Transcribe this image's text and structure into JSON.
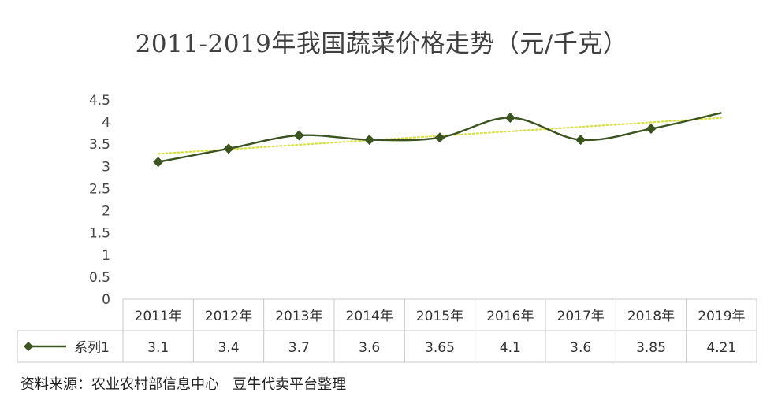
{
  "chart_data": {
    "type": "line",
    "title": "2011-2019年我国蔬菜价格走势（元/千克）",
    "categories": [
      "2011年",
      "2012年",
      "2013年",
      "2014年",
      "2015年",
      "2016年",
      "2017年",
      "2018年",
      "2019年"
    ],
    "series": [
      {
        "name": "系列1",
        "values": [
          3.1,
          3.4,
          3.7,
          3.6,
          3.65,
          4.1,
          3.6,
          3.85,
          4.21
        ]
      }
    ],
    "y_ticks": [
      "0",
      "0.5",
      "1",
      "1.5",
      "2",
      "2.5",
      "3",
      "3.5",
      "4",
      "4.5"
    ],
    "ylim": [
      0,
      4.5
    ],
    "data_table": true,
    "trendline": "linear",
    "smoothed": true,
    "grid": false,
    "colors": {
      "series": "#3b5320",
      "trendline": "#d9e04a",
      "table_border": "#c8c8c8"
    }
  },
  "source_note": "资料来源：农业农村部信息中心   豆牛代卖平台整理"
}
